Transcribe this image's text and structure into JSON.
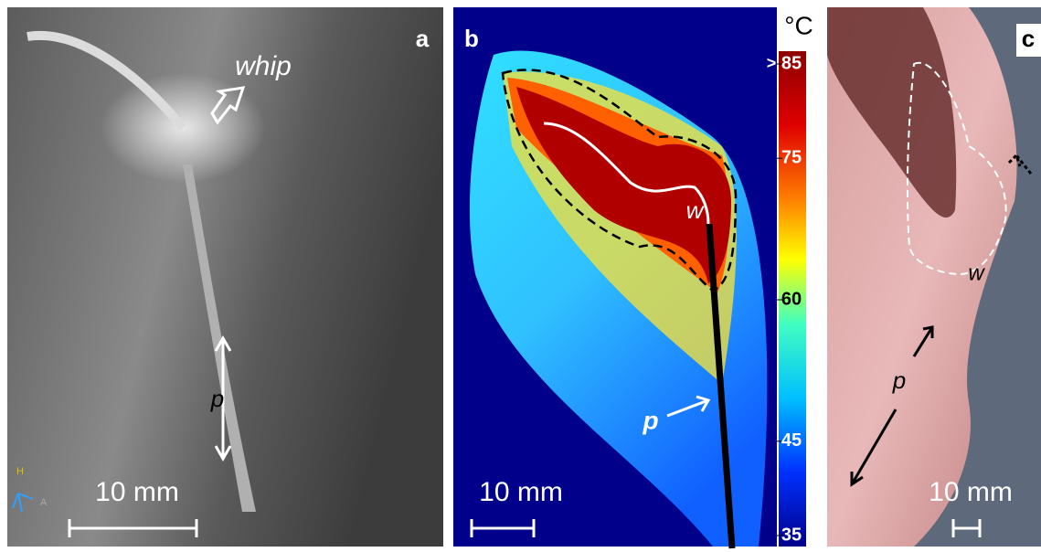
{
  "panels": [
    {
      "label": "a",
      "annotations": [
        "whip",
        "p"
      ],
      "scale_bar": "10 mm",
      "orientation": [
        "H",
        "A"
      ]
    },
    {
      "label": "b",
      "annotations": [
        "w",
        "p"
      ],
      "scale_bar": "10 mm",
      "colorbar": {
        "unit": "°C",
        "over_marker": ">",
        "ticks": [
          85,
          75,
          60,
          45,
          35
        ]
      }
    },
    {
      "label": "c",
      "annotations": [
        "w",
        "p"
      ],
      "scale_bar": "10 mm"
    }
  ]
}
